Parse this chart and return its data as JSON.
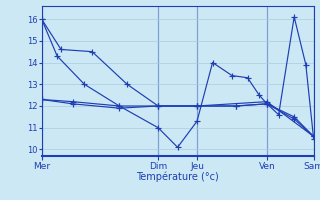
{
  "xlabel": "Température (°c)",
  "bg_color": "#cce8f4",
  "line_color": "#1e3eb4",
  "grid_color": "#a8cce0",
  "ylim": [
    9.7,
    16.6
  ],
  "yticks": [
    10,
    11,
    12,
    13,
    14,
    15,
    16
  ],
  "ytick_fontsize": 6,
  "xlim": [
    0,
    7
  ],
  "day_positions": [
    0,
    3.0,
    4.0,
    5.8,
    7.0
  ],
  "day_labels": [
    "Mer",
    "Dim",
    "Jeu",
    "Ven",
    "Sam"
  ],
  "series": [
    {
      "x": [
        0.0,
        0.4,
        1.1,
        2.0,
        3.0,
        3.5,
        4.0,
        4.4,
        4.9,
        5.3,
        5.6,
        5.8,
        6.1,
        6.5,
        6.8,
        7.0
      ],
      "y": [
        16.0,
        14.3,
        13.0,
        12.0,
        11.0,
        10.1,
        11.3,
        14.0,
        13.4,
        13.3,
        12.5,
        12.1,
        11.6,
        16.1,
        13.9,
        10.5
      ]
    },
    {
      "x": [
        0.0,
        0.5,
        1.3,
        2.2,
        3.0,
        4.0,
        5.8,
        7.0
      ],
      "y": [
        16.0,
        14.6,
        14.5,
        13.0,
        12.0,
        12.0,
        12.2,
        10.6
      ]
    },
    {
      "x": [
        0.0,
        0.8,
        2.0,
        3.0,
        4.0,
        5.0,
        5.8,
        6.5,
        7.0
      ],
      "y": [
        12.3,
        12.2,
        12.0,
        12.0,
        12.0,
        12.0,
        12.1,
        11.5,
        10.6
      ]
    },
    {
      "x": [
        0.0,
        0.8,
        2.0,
        3.0,
        4.0,
        5.0,
        5.8,
        6.5,
        7.0
      ],
      "y": [
        12.3,
        12.1,
        11.9,
        12.0,
        12.0,
        12.0,
        12.1,
        11.4,
        10.6
      ]
    }
  ]
}
